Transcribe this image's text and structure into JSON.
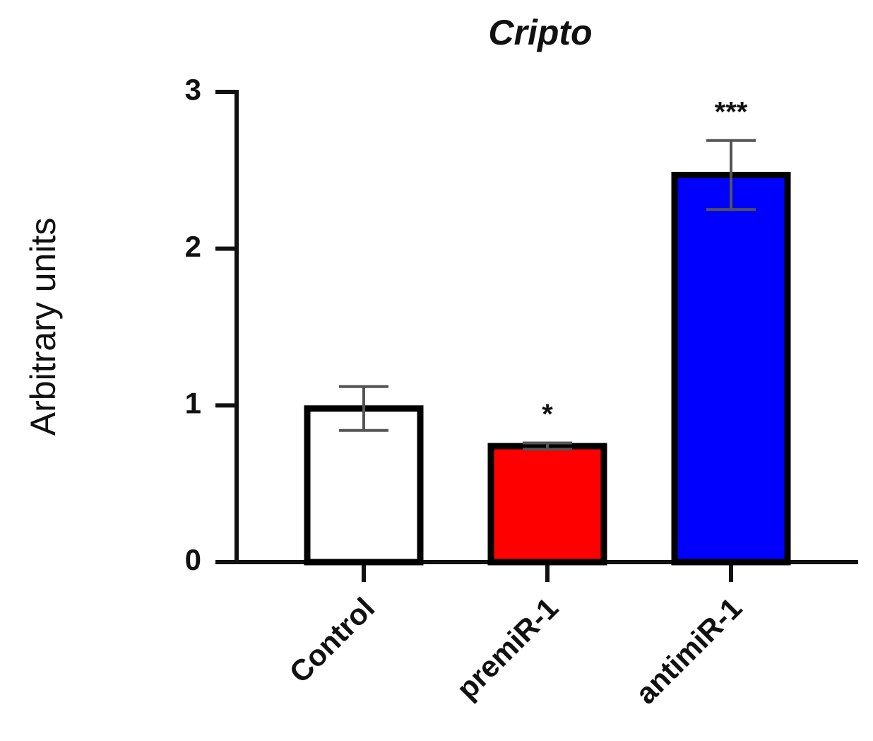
{
  "chart_data": {
    "type": "bar",
    "title": "Cripto",
    "y_label": "Arbitrary units",
    "categories": [
      "Control",
      "premiR-1",
      "antimiR-1"
    ],
    "values": [
      0.98,
      0.74,
      2.47
    ],
    "errors": [
      0.14,
      0.02,
      0.22
    ],
    "annotations": [
      null,
      "*",
      "***"
    ],
    "colors": [
      "#ffffff",
      "#ff0000",
      "#0000ff"
    ],
    "ylim": [
      0,
      3
    ],
    "yticks": [
      0,
      1,
      2,
      3
    ]
  }
}
